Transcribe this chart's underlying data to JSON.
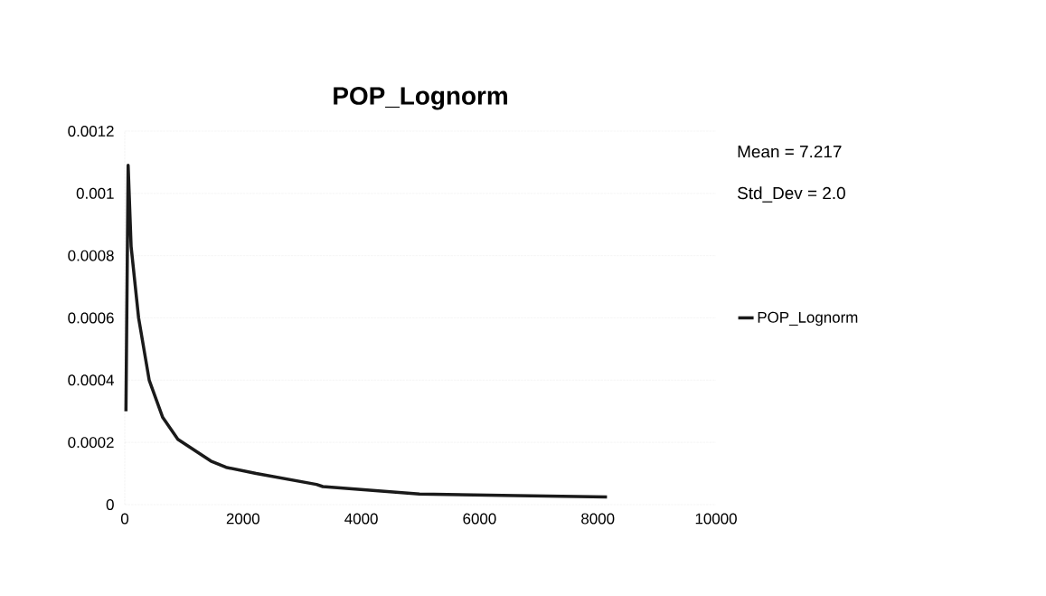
{
  "chart_data": {
    "type": "line",
    "title": "POP_Lognorm",
    "annotations": [
      "Mean = 7.217",
      "Std_Dev = 2.0"
    ],
    "x": [
      20,
      57,
      107,
      234,
      413,
      642,
      898,
      1457,
      1713,
      2222,
      3242,
      3349,
      4985,
      6627,
      8156
    ],
    "series": [
      {
        "name": "POP_Lognorm",
        "color": "#1a1a1a",
        "values": [
          0.0003,
          0.00109,
          0.00083,
          0.0006,
          0.0004,
          0.00028,
          0.00021,
          0.00014,
          0.00012,
          0.0001,
          6.5e-05,
          5.8e-05,
          3.4e-05,
          2.9e-05,
          2.5e-05
        ]
      }
    ],
    "xlim": [
      0,
      10000
    ],
    "xticks": [
      {
        "value": 0,
        "label": "0"
      },
      {
        "value": 2000,
        "label": "2000"
      },
      {
        "value": 4000,
        "label": "4000"
      },
      {
        "value": 6000,
        "label": "6000"
      },
      {
        "value": 8000,
        "label": "8000"
      },
      {
        "value": 10000,
        "label": "10000"
      }
    ],
    "ylim": [
      0,
      0.0012
    ],
    "yticks": [
      {
        "value": 0,
        "label": "0"
      },
      {
        "value": 0.0002,
        "label": "0.0002"
      },
      {
        "value": 0.0004,
        "label": "0.0004"
      },
      {
        "value": 0.0006,
        "label": "0.0006"
      },
      {
        "value": 0.0008,
        "label": "0.0008"
      },
      {
        "value": 0.001,
        "label": "0.001"
      },
      {
        "value": 0.0012,
        "label": "0.0012"
      }
    ],
    "grid": "y",
    "legend": "right",
    "marker": "none",
    "line_style": "solid"
  }
}
